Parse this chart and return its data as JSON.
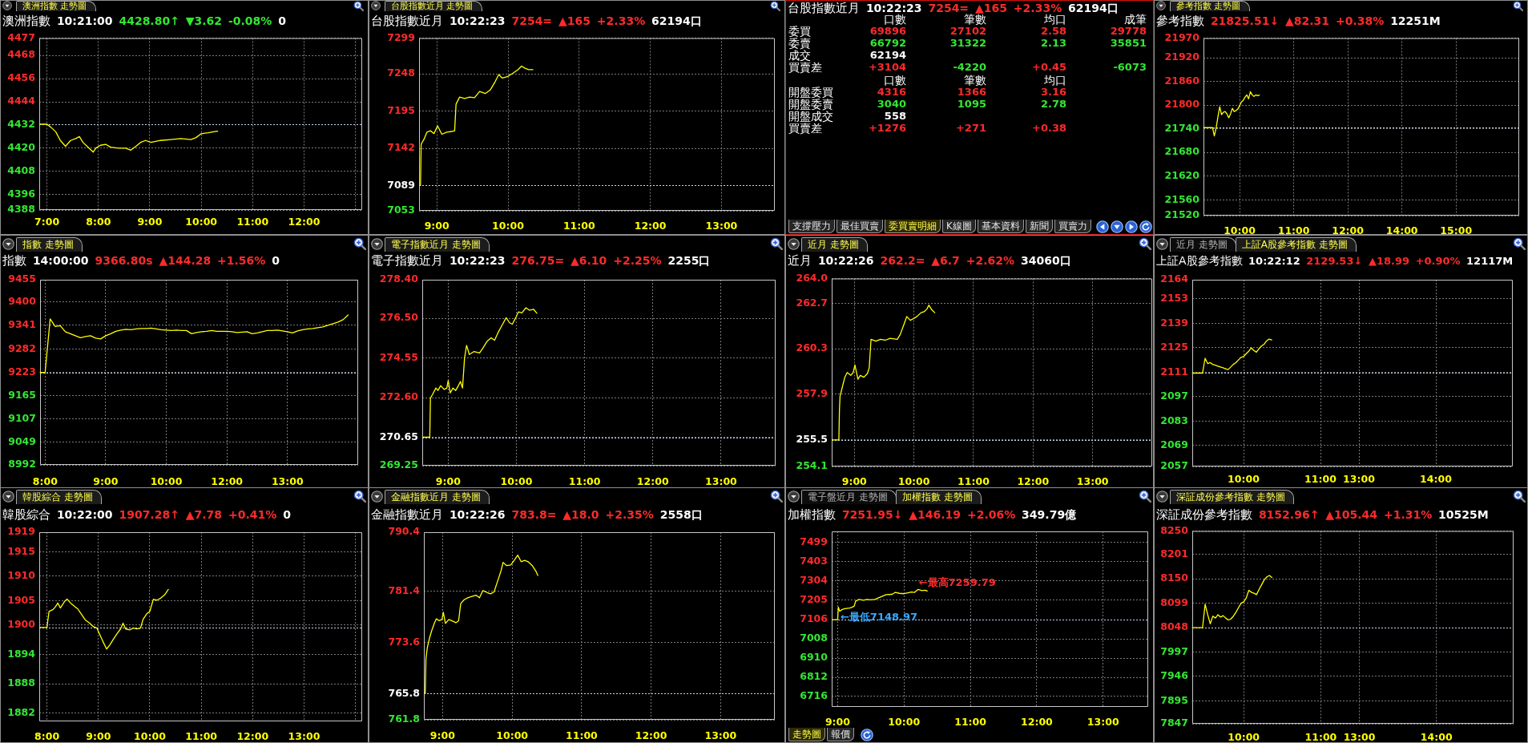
{
  "chart_data": [
    {
      "type": "line",
      "title": "澳洲指數 走勢圖",
      "subtitle": "澳洲指數 10:21:00 4428.80↑ ▼3.62 -0.08% 0",
      "x": [
        6.85,
        7,
        7.07,
        7.17,
        7.26,
        7.36,
        7.46,
        7.56,
        7.63,
        7.7,
        7.8,
        7.9,
        7.95,
        8.04,
        8.14,
        8.24,
        8.39,
        8.53,
        8.63,
        8.73,
        8.82,
        8.92,
        9.02,
        9.21,
        9.41,
        9.6,
        9.8,
        9.9,
        10,
        10.14,
        10.24,
        10.32
      ],
      "values": [
        4432.4,
        4432.4,
        4431,
        4428.5,
        4424,
        4421,
        4424,
        4425,
        4426,
        4423,
        4420.5,
        4418,
        4420,
        4421.5,
        4422,
        4420.5,
        4420,
        4420,
        4419,
        4421,
        4423,
        4424,
        4423,
        4424,
        4424.5,
        4425,
        4424.5,
        4425.5,
        4427.5,
        4428,
        4428.5,
        4428.8
      ],
      "color": "#ffff00",
      "xlim": [
        6.85,
        13.13
      ],
      "xticks": [
        {
          "value": 7,
          "label": "7:00"
        },
        {
          "value": 8,
          "label": "8:00"
        },
        {
          "value": 9,
          "label": "9:00"
        },
        {
          "value": 10,
          "label": "10:00"
        },
        {
          "value": 11,
          "label": "11:00"
        },
        {
          "value": 12,
          "label": "12:00"
        },
        {
          "value": 13,
          "label": null
        }
      ],
      "ylim": [
        4388,
        4477
      ],
      "yticks": [
        4388,
        4396,
        4408,
        4420,
        4432,
        4444,
        4456,
        4468,
        4477
      ],
      "ref_lines": [
        {
          "axis": "y",
          "value": 4432.42,
          "color": "#c4d8f4",
          "line_style": "dotted"
        }
      ],
      "grid": true
    },
    {
      "type": "line",
      "title": "台股指數近月 走勢圖",
      "subtitle": "台股指數近月 10:22:23 7254= ▲165 +2.33% 62194口",
      "x": [
        8.75,
        8.77,
        8.78,
        8.82,
        8.86,
        8.91,
        8.96,
        9.01,
        9.07,
        9.14,
        9.21,
        9.25,
        9.27,
        9.32,
        9.39,
        9.46,
        9.53,
        9.6,
        9.68,
        9.75,
        9.82,
        9.87,
        9.92,
        9.99,
        10.07,
        10.14,
        10.19,
        10.24,
        10.29,
        10.35
      ],
      "values": [
        7089,
        7089,
        7148,
        7155,
        7165,
        7167,
        7163,
        7174,
        7162,
        7165,
        7166,
        7167,
        7205,
        7215,
        7213,
        7215,
        7214,
        7223,
        7220,
        7225,
        7237,
        7247,
        7242,
        7244,
        7249,
        7254,
        7259,
        7256,
        7254,
        7254
      ],
      "color": "#ffff00",
      "xlim": [
        8.75,
        13.75
      ],
      "xticks": [
        {
          "value": 9,
          "label": "9:00"
        },
        {
          "value": 10,
          "label": "10:00"
        },
        {
          "value": 11,
          "label": "11:00"
        },
        {
          "value": 12,
          "label": "12:00"
        },
        {
          "value": 13,
          "label": "13:00"
        }
      ],
      "ylim": [
        7053,
        7299
      ],
      "yticks": [
        7053,
        7089,
        7142,
        7195,
        7248,
        7299
      ],
      "ref_lines": [
        {
          "axis": "y",
          "value": 7089,
          "color": "#c4d8f4",
          "line_style": "dotted"
        }
      ],
      "grid": true
    },
    {
      "type": "other",
      "title": "台股指數近月 10:22:23 7254= ▲165 +2.33% 62194口",
      "annotations": [
        "口數 筆數 均口 成筆",
        "委買 69896 27102 2.58 29778",
        "委賣 66792 31322 2.13 35851",
        "成交 62194",
        "買賣差 +3104 -4220 +0.45 -6073",
        "口數 筆數 均口",
        "開盤委買 4316 1366 3.16",
        "開盤委賣 3040 1095 2.78",
        "開盤成交 558",
        "買賣差 +1276 +271 +0.38"
      ]
    },
    {
      "type": "other",
      "annotations": [
        "支撐壓力",
        "最佳買賣",
        "委買賣明細",
        "K線圖",
        "基本資料",
        "新聞",
        "買賣力"
      ]
    },
    {
      "type": "line",
      "title": "參考指數 走勢圖",
      "subtitle": "參考指數 21825.51↓ ▲82.31 +0.38% 12251M",
      "categories": [
        null,
        null,
        null,
        null,
        null,
        null,
        null,
        null,
        null,
        null,
        null,
        null,
        null,
        null,
        null,
        null,
        null,
        null,
        null,
        null,
        "10:00",
        null,
        null,
        null,
        null,
        null,
        null,
        null,
        null,
        null,
        null,
        null,
        null,
        null,
        null,
        null,
        null,
        null,
        null,
        null,
        null,
        null,
        null,
        null,
        null,
        null,
        null,
        null,
        null,
        null,
        "11:00",
        null,
        null,
        null,
        null,
        null,
        null,
        null,
        null,
        null,
        null,
        null,
        null,
        null,
        null,
        null,
        null,
        null,
        null,
        null,
        null,
        null,
        null,
        null,
        null,
        null,
        null,
        null,
        null,
        null,
        "12:00",
        null,
        null,
        null,
        null,
        null,
        null,
        null,
        null,
        null,
        null,
        null,
        null,
        null,
        null,
        null,
        null,
        null,
        null,
        null,
        null,
        null,
        null,
        null,
        null,
        null,
        null,
        null,
        null,
        null,
        "14:00",
        null,
        null,
        null,
        null,
        null,
        null,
        null,
        null,
        null,
        null,
        null,
        null,
        null,
        null,
        null,
        null,
        null,
        null,
        null,
        null,
        null,
        null,
        null,
        null,
        null,
        null,
        null,
        null,
        null,
        "15:00",
        null,
        null,
        null,
        null,
        null,
        null,
        null,
        null,
        null,
        null,
        null,
        null,
        null,
        null,
        null,
        null,
        null,
        null,
        null,
        null,
        null,
        null,
        null,
        null,
        null,
        null,
        null,
        null,
        null,
        null,
        null,
        null,
        null,
        null,
        null
      ],
      "values": [
        21743,
        21743,
        21743,
        21743,
        21743,
        21743,
        21722,
        21742,
        21770,
        21796,
        21776,
        21782,
        21784,
        21778,
        21768,
        21778,
        21792,
        21784,
        21786,
        21790,
        21798,
        21808,
        21812,
        21820,
        21826,
        21816,
        21834,
        21826,
        21822,
        21826,
        21824,
        21825.51,
        null,
        null,
        null,
        null,
        null,
        null,
        null,
        null,
        null,
        null,
        null,
        null,
        null,
        null,
        null,
        null,
        null,
        null,
        null,
        null,
        null,
        null,
        null,
        null,
        null,
        null,
        null,
        null,
        null,
        null,
        null,
        null,
        null,
        null,
        null,
        null,
        null,
        null,
        null,
        null,
        null,
        null,
        null,
        null,
        null,
        null,
        null,
        null,
        null,
        null,
        null,
        null,
        null,
        null,
        null,
        null,
        null,
        null,
        null,
        null,
        null,
        null,
        null,
        null,
        null,
        null,
        null,
        null,
        null,
        null,
        null,
        null,
        null,
        null,
        null,
        null,
        null,
        null,
        null,
        null,
        null,
        null,
        null,
        null,
        null,
        null,
        null,
        null,
        null,
        null,
        null,
        null,
        null,
        null,
        null,
        null,
        null,
        null,
        null,
        null,
        null,
        null,
        null,
        null,
        null,
        null,
        null,
        null,
        null,
        null,
        null,
        null,
        null,
        null,
        null,
        null,
        null,
        null,
        null,
        null,
        null,
        null,
        null,
        null,
        null,
        null,
        null,
        null,
        null,
        null,
        null,
        null,
        null,
        null,
        null,
        null,
        null,
        null,
        null,
        null,
        null,
        null,
        null,
        null
      ],
      "color": "#ffff00",
      "ylim": [
        21520,
        21970
      ],
      "yticks": [
        21520,
        21560,
        21620,
        21680,
        21740,
        21800,
        21860,
        21920,
        21970
      ],
      "ref_lines": [
        {
          "axis": "y",
          "value": 21743.2,
          "color": "#c4d8f4",
          "line_style": "dotted"
        }
      ],
      "grid": true
    },
    {
      "type": "line",
      "title": "指數 走勢圖",
      "subtitle": "指數 14:00:00 9366.80s ▲144.28 +1.56% 0",
      "categories": [
        null,
        "8:00",
        null,
        null,
        null,
        null,
        null,
        null,
        null,
        null,
        null,
        null,
        null,
        "9:00",
        null,
        null,
        null,
        null,
        null,
        null,
        null,
        null,
        null,
        null,
        null,
        "10:00",
        null,
        null,
        null,
        null,
        null,
        null,
        null,
        null,
        null,
        null,
        null,
        "12:00",
        null,
        null,
        null,
        null,
        null,
        null,
        null,
        null,
        null,
        null,
        null,
        "13:00",
        null,
        null,
        null,
        null,
        null,
        null,
        null,
        null,
        null,
        null,
        null,
        null,
        null,
        null
      ],
      "values": [
        9223,
        9223,
        9357,
        9338,
        9340,
        9325,
        9320,
        9315,
        9310,
        9313,
        9315,
        9309,
        9307,
        9315,
        9320,
        9326,
        9329,
        9331,
        9330,
        9332,
        9333,
        9333,
        9334,
        9332,
        9330,
        9329,
        9328,
        9329,
        9328,
        9328,
        9320,
        9323,
        9325,
        9326,
        9328,
        9326,
        9326,
        9326,
        9325,
        9323,
        9324,
        9325,
        9320,
        9322,
        9325,
        9328,
        9328,
        9329,
        9327,
        9325,
        9322,
        9327,
        9330,
        9332,
        9333,
        9335,
        9337,
        9341,
        9345,
        9349,
        9355,
        9366.8,
        null,
        null
      ],
      "color": "#ffff00",
      "ylim": [
        8992,
        9455
      ],
      "yticks": [
        8992,
        9049,
        9107,
        9165,
        9223,
        9282,
        9341,
        9400,
        9455
      ],
      "ref_lines": [
        {
          "axis": "y",
          "value": 9222.52,
          "color": "#c4d8f4",
          "line_style": "dotted"
        }
      ],
      "grid": true
    },
    {
      "type": "line",
      "title": "電子指數近月 走勢圖",
      "subtitle": "電子指數近月 10:22:23 276.75= ▲6.10 +2.25% 2255口",
      "x": [
        8.62,
        8.73,
        8.74,
        8.77,
        8.82,
        8.85,
        8.89,
        8.94,
        8.98,
        9.0,
        9.03,
        9.07,
        9.11,
        9.15,
        9.18,
        9.21,
        9.24,
        9.27,
        9.31,
        9.38,
        9.46,
        9.51,
        9.57,
        9.63,
        9.68,
        9.73,
        9.79,
        9.85,
        9.9,
        9.94,
        9.99,
        10.03,
        10.08,
        10.14,
        10.19,
        10.25,
        10.3
      ],
      "values": [
        270.65,
        270.65,
        272.58,
        272.75,
        273.07,
        272.95,
        273.19,
        273.0,
        273.07,
        273.44,
        272.83,
        273.07,
        272.95,
        273.19,
        273.39,
        273.07,
        274.55,
        275.17,
        274.72,
        274.87,
        274.8,
        275.04,
        275.37,
        275.54,
        275.42,
        275.79,
        276.16,
        276.53,
        276.28,
        276.21,
        276.53,
        276.82,
        276.77,
        277.02,
        276.9,
        276.95,
        276.75
      ],
      "color": "#ffff00",
      "xlim": [
        8.62,
        13.8
      ],
      "xticks": [
        {
          "value": 9,
          "label": "9:00"
        },
        {
          "value": 10,
          "label": "10:00"
        },
        {
          "value": 11,
          "label": "11:00"
        },
        {
          "value": 12,
          "label": "12:00"
        },
        {
          "value": 13,
          "label": "13:00"
        }
      ],
      "ylim": [
        269.25,
        278.4
      ],
      "yticks": [
        269.25,
        270.65,
        {
          "value": 272.6,
          "label": "272.60"
        },
        274.55,
        {
          "value": 276.5,
          "label": "276.50"
        },
        {
          "value": 278.4,
          "label": "278.40"
        }
      ],
      "ref_lines": [
        {
          "axis": "y",
          "value": 270.65,
          "color": "#c4d8f4",
          "line_style": "dotted"
        }
      ],
      "grid": true
    },
    {
      "type": "line",
      "title": "近月 走勢圖",
      "subtitle": "近月 10:22:26 262.2= ▲6.7 +2.62% 34060口",
      "x": [
        8.62,
        8.74,
        8.75,
        8.76,
        8.8,
        8.84,
        8.88,
        8.94,
        8.98,
        9.01,
        9.06,
        9.1,
        9.16,
        9.22,
        9.25,
        9.28,
        9.36,
        9.44,
        9.52,
        9.6,
        9.72,
        9.77,
        9.84,
        9.88,
        9.94,
        10.0,
        10.05,
        10.12,
        10.17,
        10.22,
        10.25,
        10.3,
        10.35
      ],
      "values": [
        255.5,
        255.5,
        257.1,
        257.8,
        258.3,
        258.8,
        259.05,
        258.9,
        259.05,
        259.45,
        258.7,
        258.9,
        258.8,
        259.0,
        259.3,
        260.8,
        260.7,
        260.8,
        260.75,
        260.85,
        260.8,
        261.05,
        261.65,
        262.0,
        261.8,
        261.9,
        262.0,
        262.2,
        262.25,
        262.4,
        262.6,
        262.35,
        262.2
      ],
      "color": "#ffff00",
      "xlim": [
        8.62,
        14.0
      ],
      "xticks": [
        {
          "value": 9,
          "label": "9:00"
        },
        {
          "value": 10,
          "label": "10:00"
        },
        {
          "value": 11,
          "label": "11:00"
        },
        {
          "value": 12,
          "label": "12:00"
        },
        {
          "value": 13,
          "label": "13:00"
        }
      ],
      "ylim": [
        254.1,
        264.0
      ],
      "yticks": [
        254.1,
        255.5,
        257.9,
        260.3,
        262.7,
        {
          "value": 264,
          "label": "264.0"
        }
      ],
      "ref_lines": [
        {
          "axis": "y",
          "value": 255.5,
          "color": "#c4d8f4",
          "line_style": "dotted"
        }
      ],
      "grid": true
    },
    {
      "type": "line",
      "title": "上証A股參考指數 走勢圖",
      "subtitle": "上証A股參考指數 10:22:12 2129.53↓ ▲18.99 +0.90% 12117M",
      "annotations": [
        "近月 走勢圖"
      ],
      "categories": [
        null,
        null,
        null,
        null,
        null,
        null,
        null,
        null,
        null,
        null,
        null,
        null,
        null,
        null,
        null,
        null,
        null,
        null,
        null,
        null,
        "10:00",
        null,
        null,
        null,
        null,
        null,
        null,
        null,
        null,
        null,
        null,
        null,
        null,
        null,
        null,
        null,
        null,
        null,
        null,
        null,
        null,
        null,
        null,
        null,
        null,
        null,
        null,
        null,
        null,
        null,
        "11:00",
        null,
        null,
        null,
        null,
        null,
        null,
        null,
        null,
        null,
        null,
        null,
        null,
        null,
        null,
        "13:00",
        null,
        null,
        null,
        null,
        null,
        null,
        null,
        null,
        null,
        null,
        null,
        null,
        null,
        null,
        null,
        null,
        null,
        null,
        null,
        null,
        null,
        null,
        null,
        null,
        null,
        null,
        null,
        null,
        null,
        "14:00",
        null,
        null,
        null,
        null,
        null,
        null,
        null,
        null,
        null,
        null,
        null,
        null,
        null,
        null,
        null,
        null,
        null,
        null,
        null,
        null,
        null,
        null,
        null,
        null,
        null,
        null,
        null,
        null,
        null,
        null
      ],
      "values": [
        2110.5,
        2110.5,
        2110.5,
        2110.5,
        2110.5,
        2119,
        2116,
        2116.5,
        2115.5,
        2115,
        2114.5,
        2114,
        2113.5,
        2113,
        2112.5,
        2114,
        2115.5,
        2116.5,
        2118,
        2119.5,
        2120,
        2121.5,
        2123,
        2125,
        2123.5,
        2122.5,
        2124.5,
        2126,
        2127,
        2129,
        2130,
        2129.53,
        null,
        null,
        null,
        null,
        null,
        null,
        null,
        null,
        null,
        null,
        null,
        null,
        null,
        null,
        null,
        null,
        null,
        null,
        null,
        null,
        null,
        null,
        null,
        null,
        null,
        null,
        null,
        null,
        null,
        null,
        null,
        null,
        null,
        null,
        null,
        null,
        null,
        null,
        null,
        null,
        null,
        null,
        null,
        null,
        null,
        null,
        null,
        null,
        null,
        null,
        null,
        null,
        null,
        null,
        null,
        null,
        null,
        null,
        null,
        null,
        null,
        null,
        null,
        null,
        null,
        null,
        null,
        null,
        null,
        null,
        null,
        null,
        null,
        null,
        null,
        null,
        null,
        null,
        null,
        null,
        null,
        null,
        null,
        null,
        null,
        null,
        null,
        null,
        null,
        null,
        null,
        null,
        null,
        null
      ],
      "color": "#ffff00",
      "ylim": [
        2057,
        2164
      ],
      "yticks": [
        2057,
        2069,
        2083,
        2097,
        2111,
        2125,
        2139,
        2153,
        2164
      ],
      "ref_lines": [
        {
          "axis": "y",
          "value": 2110.54,
          "color": "#c4d8f4",
          "line_style": "dotted"
        }
      ],
      "grid": true
    },
    {
      "type": "line",
      "title": "韓股綜合 走勢圖",
      "subtitle": "韓股綜合 10:22:00 1907.28↑ ▲7.78 +0.41% 0",
      "x": [
        7.85,
        8.0,
        8.04,
        8.12,
        8.17,
        8.21,
        8.26,
        8.34,
        8.39,
        8.46,
        8.54,
        8.6,
        8.67,
        8.75,
        8.83,
        8.9,
        8.97,
        9.02,
        9.09,
        9.16,
        9.22,
        9.29,
        9.36,
        9.43,
        9.48,
        9.53,
        9.61,
        9.68,
        9.75,
        9.82,
        9.87,
        9.94,
        10.0,
        10.07,
        10.14,
        10.21,
        10.29,
        10.36
      ],
      "values": [
        1899.5,
        1899.5,
        1902.8,
        1903.2,
        1903.8,
        1904.5,
        1903.5,
        1904.8,
        1905.3,
        1904.5,
        1903.8,
        1903.3,
        1902.2,
        1901,
        1900.4,
        1899.7,
        1899.4,
        1898.2,
        1896.6,
        1895.1,
        1895.9,
        1897.1,
        1898.2,
        1899.2,
        1900.4,
        1899.2,
        1899,
        1899.4,
        1899.2,
        1899.4,
        1901.2,
        1902.3,
        1902.8,
        1905.3,
        1905.1,
        1905.5,
        1906.2,
        1907.28
      ],
      "color": "#ffff00",
      "xlim": [
        7.85,
        14.13
      ],
      "xticks": [
        {
          "value": 8,
          "label": "8:00"
        },
        {
          "value": 9,
          "label": "9:00"
        },
        {
          "value": 10,
          "label": "10:00"
        },
        {
          "value": 11,
          "label": "11:00"
        },
        {
          "value": 12,
          "label": "12:00"
        },
        {
          "value": 13,
          "label": "13:00"
        },
        {
          "value": 14,
          "label": null
        }
      ],
      "ylim": [
        1880.3,
        1919
      ],
      "yticks": [
        1882,
        1888,
        1894,
        1900,
        1905,
        1910,
        1915,
        1919
      ],
      "ref_lines": [
        {
          "axis": "y",
          "value": 1899.5,
          "color": "#c4d8f4",
          "line_style": "dotted"
        }
      ],
      "grid": true
    },
    {
      "type": "line",
      "title": "金融指數近月 走勢圖",
      "subtitle": "金融指數近月 10:22:26 783.8= ▲18.0 +2.35% 2558口",
      "x": [
        8.73,
        8.75,
        8.76,
        8.78,
        8.81,
        8.84,
        8.88,
        8.91,
        8.95,
        8.99,
        9.01,
        9.04,
        9.09,
        9.13,
        9.19,
        9.23,
        9.26,
        9.31,
        9.36,
        9.42,
        9.48,
        9.53,
        9.58,
        9.64,
        9.69,
        9.74,
        9.79,
        9.84,
        9.87,
        9.92,
        9.98,
        10.03,
        10.08,
        10.13,
        10.18,
        10.23,
        10.29,
        10.34,
        10.37
      ],
      "values": [
        765.8,
        765.8,
        771.1,
        772.8,
        774.2,
        775.3,
        776.5,
        777.2,
        776.9,
        777.1,
        778.2,
        776.5,
        777.1,
        776.9,
        776.6,
        776.9,
        779.5,
        780.1,
        780.4,
        780.6,
        780.8,
        780.4,
        781.5,
        781.2,
        781.0,
        781.3,
        782.9,
        784.5,
        785.8,
        785.3,
        785.4,
        786.1,
        786.9,
        785.9,
        786.1,
        785.9,
        785.3,
        784.5,
        783.8
      ],
      "color": "#ffff00",
      "xlim": [
        8.73,
        13.78
      ],
      "xticks": [
        {
          "value": 9,
          "label": "9:00"
        },
        {
          "value": 10,
          "label": "10:00"
        },
        {
          "value": 11,
          "label": "11:00"
        },
        {
          "value": 12,
          "label": "12:00"
        },
        {
          "value": 13,
          "label": "13:00"
        }
      ],
      "ylim": [
        761.8,
        790.4
      ],
      "yticks": [
        761.8,
        765.8,
        773.6,
        781.4,
        790.4
      ],
      "ref_lines": [
        {
          "axis": "y",
          "value": 765.8,
          "color": "#c4d8f4",
          "line_style": "dotted"
        }
      ],
      "grid": true
    },
    {
      "type": "line",
      "title": "加權指數 走勢圖",
      "subtitle": "加權指數 7251.95↓ ▲146.19 +2.06% 349.79億",
      "annotations": [
        "電子盤近月 走勢圖",
        {
          "text": "←最高7259.79",
          "x": 10.21,
          "y": 7259.79
        },
        {
          "text": "←最低7148.97",
          "x": 9.03,
          "y": 7148.97
        }
      ],
      "x": [
        8.91,
        9.0,
        9.01,
        9.03,
        9.07,
        9.11,
        9.18,
        9.21,
        9.25,
        9.27,
        9.32,
        9.39,
        9.44,
        9.49,
        9.56,
        9.63,
        9.68,
        9.73,
        9.82,
        9.87,
        9.93,
        10.0,
        10.06,
        10.11,
        10.16,
        10.21,
        10.27,
        10.32,
        10.35
      ],
      "values": [
        7106,
        7106,
        7170,
        7148.97,
        7158,
        7162,
        7165,
        7168,
        7175,
        7200,
        7209,
        7205,
        7209,
        7207,
        7209,
        7219,
        7226,
        7233,
        7235,
        7245,
        7240,
        7238,
        7243,
        7247,
        7245,
        7259.79,
        7254,
        7256,
        7251.95
      ],
      "color": "#ffff00",
      "xlim": [
        8.91,
        13.68
      ],
      "xticks": [
        {
          "value": 9,
          "label": "9:00"
        },
        {
          "value": 10,
          "label": "10:00"
        },
        {
          "value": 11,
          "label": "11:00"
        },
        {
          "value": 12,
          "label": "12:00"
        },
        {
          "value": 13,
          "label": "13:00"
        }
      ],
      "ylim": [
        6662,
        7555
      ],
      "yticks": [
        6716,
        6812,
        6910,
        7008,
        7106,
        7205,
        7304,
        7403,
        7499
      ],
      "ref_lines": [
        {
          "axis": "y",
          "value": 7105.76,
          "color": "#c4d8f4",
          "line_style": "dotted"
        }
      ],
      "grid": true
    },
    {
      "type": "other",
      "annotations": [
        "走勢圖",
        "報價"
      ]
    },
    {
      "type": "line",
      "title": "深証成份參考指數 走勢圖",
      "subtitle": "深証成份參考指數 8152.96↑ ▲105.44 +1.31% 10525M",
      "categories": [
        null,
        null,
        null,
        null,
        null,
        null,
        null,
        null,
        null,
        null,
        null,
        null,
        null,
        null,
        null,
        null,
        null,
        null,
        null,
        null,
        "10:00",
        null,
        null,
        null,
        null,
        null,
        null,
        null,
        null,
        null,
        null,
        null,
        null,
        null,
        null,
        null,
        null,
        null,
        null,
        null,
        null,
        null,
        null,
        null,
        null,
        null,
        null,
        null,
        null,
        null,
        "11:00",
        null,
        null,
        null,
        null,
        null,
        null,
        null,
        null,
        null,
        null,
        null,
        null,
        null,
        null,
        "13:00",
        null,
        null,
        null,
        null,
        null,
        null,
        null,
        null,
        null,
        null,
        null,
        null,
        null,
        null,
        null,
        null,
        null,
        null,
        null,
        null,
        null,
        null,
        null,
        null,
        null,
        null,
        null,
        null,
        null,
        "14:00",
        null,
        null,
        null,
        null,
        null,
        null,
        null,
        null,
        null,
        null,
        null,
        null,
        null,
        null,
        null,
        null,
        null,
        null,
        null,
        null,
        null,
        null,
        null,
        null,
        null,
        null,
        null,
        null,
        null,
        null
      ],
      "values": [
        8048,
        8048,
        8048,
        8048,
        8048,
        8097,
        8075,
        8056,
        8072,
        8068,
        8075,
        8070,
        8073,
        8068,
        8064,
        8066,
        8072,
        8080,
        8090,
        8099,
        8102,
        8110,
        8126,
        8122,
        8120,
        8117,
        8128,
        8138,
        8148,
        8154,
        8157,
        8152.96,
        null,
        null,
        null,
        null,
        null,
        null,
        null,
        null,
        null,
        null,
        null,
        null,
        null,
        null,
        null,
        null,
        null,
        null,
        null,
        null,
        null,
        null,
        null,
        null,
        null,
        null,
        null,
        null,
        null,
        null,
        null,
        null,
        null,
        null,
        null,
        null,
        null,
        null,
        null,
        null,
        null,
        null,
        null,
        null,
        null,
        null,
        null,
        null,
        null,
        null,
        null,
        null,
        null,
        null,
        null,
        null,
        null,
        null,
        null,
        null,
        null,
        null,
        null,
        null,
        null,
        null,
        null,
        null,
        null,
        null,
        null,
        null,
        null,
        null,
        null,
        null,
        null,
        null,
        null,
        null,
        null,
        null,
        null,
        null,
        null,
        null,
        null,
        null,
        null,
        null,
        null,
        null,
        null,
        null
      ],
      "color": "#ffff00",
      "ylim": [
        7847,
        8250
      ],
      "yticks": [
        7847,
        7895,
        7946,
        7997,
        8048,
        8099,
        8150,
        8201,
        8250
      ],
      "ref_lines": [
        {
          "axis": "y",
          "value": 8047.52,
          "color": "#c4d8f4",
          "line_style": "dotted"
        }
      ],
      "grid": true
    }
  ]
}
